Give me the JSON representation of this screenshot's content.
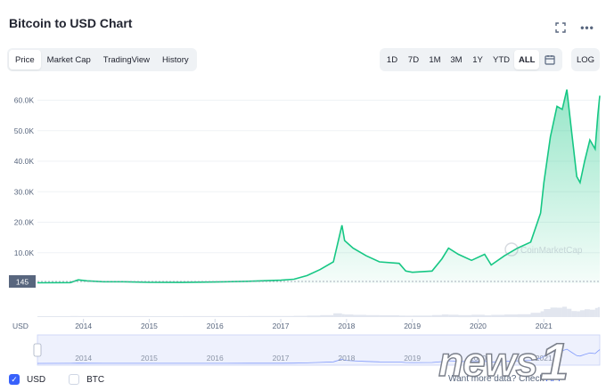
{
  "header": {
    "title": "Bitcoin to USD Chart",
    "expand_icon": "expand-icon",
    "more_icon": "more-icon",
    "more_glyph": "•••"
  },
  "tabs": [
    {
      "label": "Price",
      "active": true
    },
    {
      "label": "Market Cap",
      "active": false
    },
    {
      "label": "TradingView",
      "active": false
    },
    {
      "label": "History",
      "active": false
    }
  ],
  "ranges": [
    {
      "label": "1D",
      "active": false
    },
    {
      "label": "7D",
      "active": false
    },
    {
      "label": "1M",
      "active": false
    },
    {
      "label": "3M",
      "active": false
    },
    {
      "label": "1Y",
      "active": false
    },
    {
      "label": "YTD",
      "active": false
    },
    {
      "label": "ALL",
      "active": true
    }
  ],
  "calendar_icon": "calendar-icon",
  "log_label": "LOG",
  "currency_label": "USD",
  "watermark": "CoinMarketCap",
  "legend": [
    {
      "label": "USD",
      "checked": true
    },
    {
      "label": "BTC",
      "checked": false
    }
  ],
  "api_note": {
    "text": "Want more data? Check",
    "link": "API"
  },
  "news_logo": "news1",
  "colors": {
    "line": "#16c784",
    "accent": "#3861fb",
    "text": "#222531",
    "muted": "#58667e"
  },
  "chart_data": {
    "type": "area",
    "y_ticks": [
      "60.0K",
      "50.0K",
      "40.0K",
      "30.0K",
      "20.0K",
      "10.0K"
    ],
    "y_tick_values": [
      60000,
      50000,
      40000,
      30000,
      20000,
      10000
    ],
    "x_ticks": [
      "2014",
      "2015",
      "2016",
      "2017",
      "2018",
      "2019",
      "2020",
      "2021"
    ],
    "ylim": [
      0,
      66000
    ],
    "current_label": "145",
    "series": [
      {
        "x": [
          2013.3,
          2013.8,
          2013.92,
          2014.05,
          2014.3,
          2014.6,
          2015.0,
          2015.5,
          2016.0,
          2016.5,
          2017.0,
          2017.2,
          2017.4,
          2017.6,
          2017.8,
          2017.93,
          2017.97,
          2018.1,
          2018.3,
          2018.5,
          2018.8,
          2018.9,
          2019.0,
          2019.3,
          2019.45,
          2019.55,
          2019.7,
          2019.9,
          2020.1,
          2020.2,
          2020.4,
          2020.6,
          2020.8,
          2020.95,
          2021.0,
          2021.1,
          2021.2,
          2021.28,
          2021.35,
          2021.42,
          2021.5,
          2021.55,
          2021.62,
          2021.7,
          2021.78,
          2021.82,
          2021.85
        ],
        "values": [
          150,
          200,
          1100,
          800,
          500,
          500,
          300,
          250,
          420,
          650,
          1000,
          1300,
          2500,
          4500,
          7000,
          19000,
          14000,
          11500,
          9000,
          7000,
          6500,
          4000,
          3600,
          4000,
          8000,
          11500,
          9500,
          7500,
          9500,
          6000,
          9000,
          11500,
          13500,
          23000,
          33000,
          48000,
          58000,
          57000,
          63500,
          50000,
          35000,
          33000,
          40000,
          47000,
          44000,
          55000,
          61500
        ]
      }
    ],
    "grid": true
  }
}
